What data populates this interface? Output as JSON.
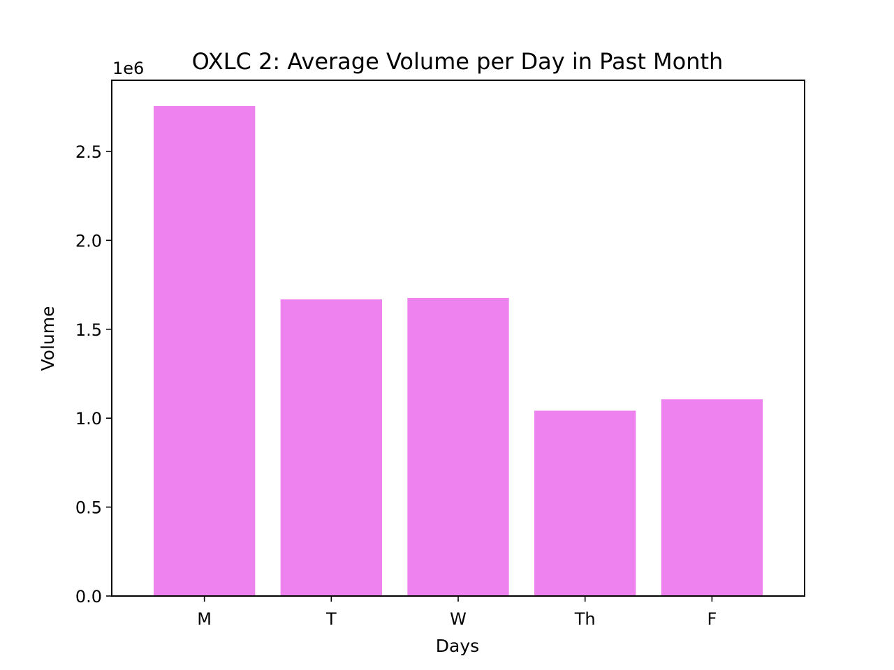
{
  "chart_data": {
    "type": "bar",
    "title": "OXLC 2: Average Volume per Day in Past Month",
    "xlabel": "Days",
    "ylabel": "Volume",
    "y_offset_label": "1e6",
    "categories": [
      "M",
      "T",
      "W",
      "Th",
      "F"
    ],
    "values": [
      2755000,
      1668000,
      1676000,
      1042000,
      1106000
    ],
    "ylim": [
      0,
      2900000
    ],
    "yticks": [
      0,
      500000,
      1000000,
      1500000,
      2000000,
      2500000
    ],
    "ytick_labels": [
      "0.0",
      "0.5",
      "1.0",
      "1.5",
      "2.0",
      "2.5"
    ],
    "bar_color": "#ee82ee",
    "grid": false,
    "legend": "none"
  }
}
